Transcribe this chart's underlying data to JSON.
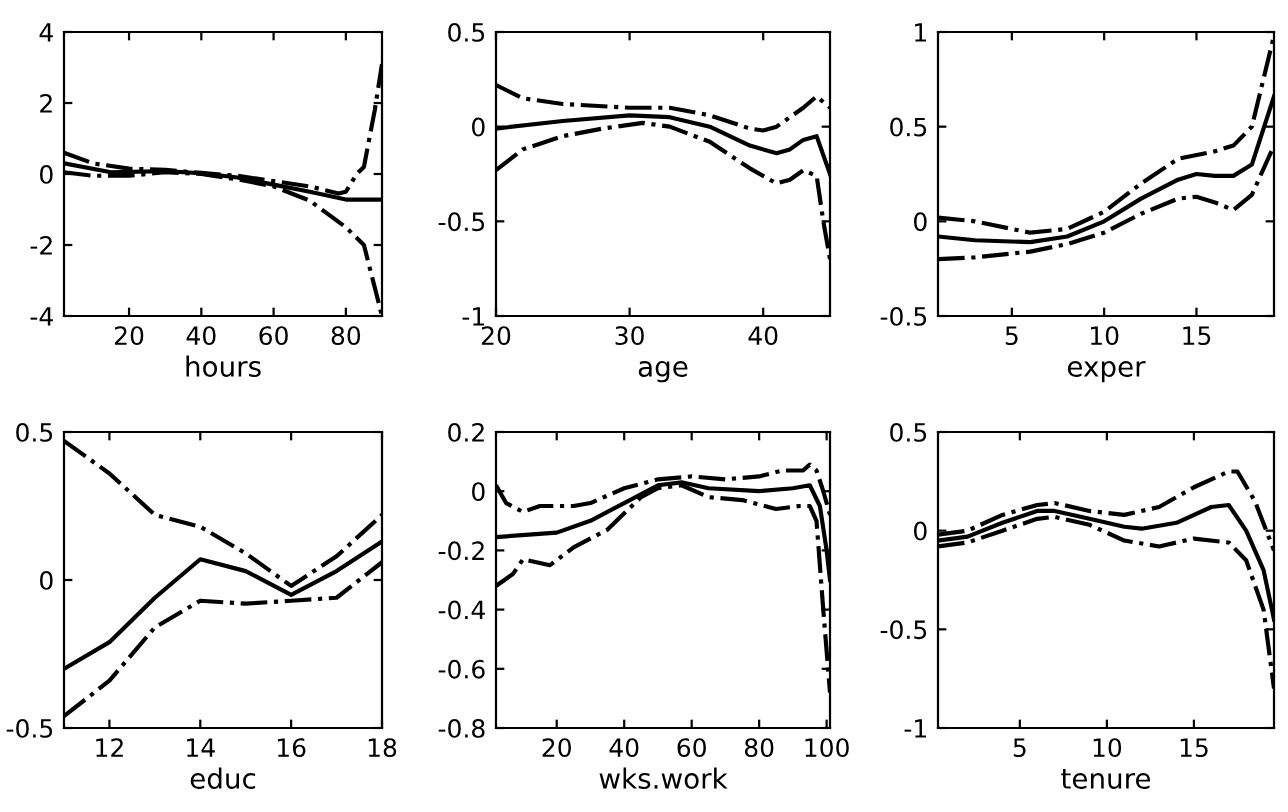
{
  "chart_data": [
    {
      "type": "line",
      "xlabel": "hours",
      "xlim": [
        2,
        90
      ],
      "ylim": [
        -4,
        4
      ],
      "xticks": [
        20,
        40,
        60,
        80
      ],
      "yticks": [
        -4,
        -2,
        0,
        2,
        4
      ],
      "grid": false,
      "legend": false,
      "series": [
        {
          "color": "#000000",
          "line_style": "solid",
          "x": [
            2,
            15,
            30,
            40,
            50,
            60,
            70,
            80,
            90
          ],
          "values": [
            0.3,
            0.05,
            0.08,
            0.02,
            -0.1,
            -0.3,
            -0.5,
            -0.72,
            -0.72
          ]
        },
        {
          "color": "#000000",
          "line_style": "dashdot",
          "x": [
            2,
            10,
            20,
            30,
            40,
            50,
            60,
            70,
            78,
            80,
            83,
            85,
            88,
            90
          ],
          "values": [
            0.6,
            0.3,
            0.15,
            0.12,
            0.03,
            -0.05,
            -0.2,
            -0.35,
            -0.55,
            -0.5,
            0.0,
            0.2,
            1.8,
            3.1
          ]
        },
        {
          "color": "#000000",
          "line_style": "dashdot",
          "x": [
            2,
            10,
            20,
            30,
            40,
            50,
            60,
            70,
            76,
            80,
            85,
            88,
            90
          ],
          "values": [
            0.05,
            -0.05,
            -0.05,
            0.05,
            0.0,
            -0.15,
            -0.35,
            -0.75,
            -1.2,
            -1.5,
            -2.0,
            -3.2,
            -4.0
          ]
        }
      ]
    },
    {
      "type": "line",
      "xlabel": "age",
      "xlim": [
        20,
        45
      ],
      "ylim": [
        -1,
        0.5
      ],
      "xticks": [
        20,
        30,
        40
      ],
      "yticks": [
        -1,
        -0.5,
        0,
        0.5
      ],
      "grid": false,
      "legend": false,
      "series": [
        {
          "color": "#000000",
          "line_style": "solid",
          "x": [
            20,
            25,
            30,
            33,
            36,
            39,
            41,
            42,
            43,
            44,
            45
          ],
          "values": [
            -0.01,
            0.03,
            0.06,
            0.05,
            0.0,
            -0.1,
            -0.14,
            -0.12,
            -0.07,
            -0.05,
            -0.25
          ]
        },
        {
          "color": "#000000",
          "line_style": "dashdot",
          "x": [
            20,
            22,
            25,
            30,
            33,
            36,
            39,
            40,
            41,
            43,
            44,
            45
          ],
          "values": [
            0.22,
            0.15,
            0.12,
            0.1,
            0.1,
            0.06,
            -0.01,
            -0.02,
            0.0,
            0.1,
            0.16,
            0.1
          ]
        },
        {
          "color": "#000000",
          "line_style": "dashdot",
          "x": [
            20,
            22,
            25,
            28,
            31,
            33,
            36,
            39,
            41,
            42,
            43,
            44,
            44.5,
            45
          ],
          "values": [
            -0.23,
            -0.12,
            -0.05,
            -0.01,
            0.02,
            0.0,
            -0.08,
            -0.22,
            -0.3,
            -0.28,
            -0.23,
            -0.26,
            -0.5,
            -0.7
          ]
        }
      ]
    },
    {
      "type": "line",
      "xlabel": "exper",
      "xlim": [
        1,
        19.2
      ],
      "ylim": [
        -0.5,
        1
      ],
      "xticks": [
        5,
        10,
        15
      ],
      "yticks": [
        -0.5,
        0,
        0.5,
        1
      ],
      "grid": false,
      "legend": false,
      "series": [
        {
          "color": "#000000",
          "line_style": "solid",
          "x": [
            1,
            3,
            6,
            8,
            10,
            12,
            14,
            15,
            16,
            17,
            18,
            19.2
          ],
          "values": [
            -0.08,
            -0.1,
            -0.11,
            -0.08,
            0.0,
            0.12,
            0.22,
            0.25,
            0.24,
            0.24,
            0.3,
            0.66
          ]
        },
        {
          "color": "#000000",
          "line_style": "dashdot",
          "x": [
            1,
            3,
            6,
            8,
            10,
            12,
            14,
            16,
            17,
            18,
            19.2
          ],
          "values": [
            0.02,
            0.0,
            -0.06,
            -0.04,
            0.05,
            0.2,
            0.33,
            0.37,
            0.4,
            0.5,
            0.98
          ]
        },
        {
          "color": "#000000",
          "line_style": "dashdot",
          "x": [
            1,
            3,
            6,
            8,
            10,
            12,
            14,
            15,
            16,
            17,
            18,
            19.2
          ],
          "values": [
            -0.2,
            -0.19,
            -0.16,
            -0.12,
            -0.06,
            0.04,
            0.12,
            0.13,
            0.1,
            0.06,
            0.14,
            0.4
          ]
        }
      ]
    },
    {
      "type": "line",
      "xlabel": "educ",
      "xlim": [
        11,
        18
      ],
      "ylim": [
        -0.5,
        0.5
      ],
      "xticks": [
        12,
        14,
        16,
        18
      ],
      "yticks": [
        -0.5,
        0,
        0.5
      ],
      "grid": false,
      "legend": false,
      "series": [
        {
          "color": "#000000",
          "line_style": "solid",
          "x": [
            11,
            12,
            13,
            14,
            15,
            16,
            17,
            18
          ],
          "values": [
            -0.3,
            -0.21,
            -0.06,
            0.07,
            0.03,
            -0.05,
            0.03,
            0.13
          ]
        },
        {
          "color": "#000000",
          "line_style": "dashdot",
          "x": [
            11,
            12,
            13,
            14,
            15,
            16,
            17,
            18
          ],
          "values": [
            0.47,
            0.36,
            0.22,
            0.18,
            0.09,
            -0.02,
            0.08,
            0.22
          ]
        },
        {
          "color": "#000000",
          "line_style": "dashdot",
          "x": [
            11,
            12,
            13,
            14,
            15,
            16,
            17,
            18
          ],
          "values": [
            -0.46,
            -0.34,
            -0.16,
            -0.07,
            -0.08,
            -0.07,
            -0.06,
            0.06
          ]
        }
      ]
    },
    {
      "type": "line",
      "xlabel": "wks.work",
      "xlim": [
        2,
        101
      ],
      "ylim": [
        -0.8,
        0.2
      ],
      "xticks": [
        20,
        40,
        60,
        80,
        100
      ],
      "yticks": [
        -0.8,
        -0.6,
        -0.4,
        -0.2,
        0,
        0.2
      ],
      "grid": false,
      "legend": false,
      "series": [
        {
          "color": "#000000",
          "line_style": "solid",
          "x": [
            2,
            20,
            30,
            40,
            50,
            57,
            65,
            80,
            90,
            95,
            98,
            100,
            101
          ],
          "values": [
            -0.155,
            -0.14,
            -0.1,
            -0.04,
            0.02,
            0.03,
            0.01,
            0.0,
            0.01,
            0.02,
            -0.05,
            -0.2,
            -0.3
          ]
        },
        {
          "color": "#000000",
          "line_style": "dashdot",
          "x": [
            2,
            5,
            10,
            15,
            25,
            30,
            40,
            50,
            60,
            70,
            80,
            87,
            93,
            95,
            97,
            99,
            101
          ],
          "values": [
            0.02,
            -0.04,
            -0.07,
            -0.05,
            -0.05,
            -0.04,
            0.01,
            0.04,
            0.05,
            0.04,
            0.05,
            0.07,
            0.07,
            0.09,
            0.07,
            0.0,
            -0.08
          ]
        },
        {
          "color": "#000000",
          "line_style": "dashdot",
          "x": [
            2,
            7,
            10,
            18,
            25,
            35,
            45,
            50,
            57,
            65,
            75,
            85,
            92,
            95,
            97,
            99,
            101
          ],
          "values": [
            -0.32,
            -0.28,
            -0.23,
            -0.25,
            -0.19,
            -0.13,
            -0.02,
            0.01,
            0.02,
            -0.02,
            -0.03,
            -0.06,
            -0.05,
            -0.05,
            -0.1,
            -0.4,
            -0.68
          ]
        }
      ]
    },
    {
      "type": "line",
      "xlabel": "tenure",
      "xlim": [
        0.3,
        19.6
      ],
      "ylim": [
        -1,
        0.5
      ],
      "xticks": [
        5,
        10,
        15
      ],
      "yticks": [
        -1,
        -0.5,
        0,
        0.5
      ],
      "grid": false,
      "legend": false,
      "series": [
        {
          "color": "#000000",
          "line_style": "solid",
          "x": [
            0.3,
            2,
            4,
            6,
            7,
            9,
            11,
            12,
            14,
            16,
            17,
            18,
            19,
            19.6
          ],
          "values": [
            -0.05,
            -0.03,
            0.04,
            0.1,
            0.1,
            0.06,
            0.02,
            0.01,
            0.04,
            0.12,
            0.13,
            0.0,
            -0.2,
            -0.45
          ]
        },
        {
          "color": "#000000",
          "line_style": "dashdot",
          "x": [
            0.3,
            2,
            4,
            6,
            7,
            9,
            11,
            13,
            15,
            17,
            17.5,
            18.5,
            19.6
          ],
          "values": [
            -0.02,
            0.0,
            0.08,
            0.13,
            0.14,
            0.1,
            0.08,
            0.12,
            0.22,
            0.3,
            0.3,
            0.15,
            -0.1
          ]
        },
        {
          "color": "#000000",
          "line_style": "dashdot",
          "x": [
            0.3,
            2,
            4,
            6,
            7,
            9,
            11,
            13,
            15,
            17,
            18,
            19,
            19.6
          ],
          "values": [
            -0.08,
            -0.06,
            0.0,
            0.06,
            0.07,
            0.03,
            -0.05,
            -0.08,
            -0.04,
            -0.06,
            -0.15,
            -0.4,
            -0.8
          ]
        }
      ]
    }
  ]
}
